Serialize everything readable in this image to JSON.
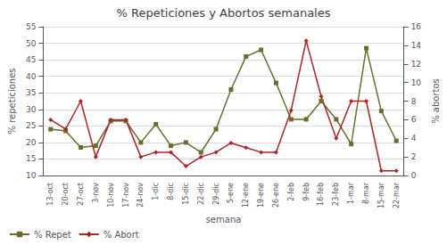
{
  "chart_data": {
    "type": "line",
    "title": "% Repeticiones y Abortos semanales",
    "xlabel": "semana",
    "ylabel": "% repeticiones",
    "y2label": "% abortos",
    "categories": [
      "13-oct",
      "20-oct",
      "27-oct",
      "3-nov",
      "10-nov",
      "17-nov",
      "24-nov",
      "1-dic",
      "8-dic",
      "15-dic",
      "22-dic",
      "29-dic",
      "5-ene",
      "12-ene",
      "19-ene",
      "26-ene",
      "2-feb",
      "9-feb",
      "16-feb",
      "23-feb",
      "1-mar",
      "8-mar",
      "15-mar",
      "22-mar"
    ],
    "series": [
      {
        "name": "% Repet",
        "color": "#6b6b2a",
        "marker": "square",
        "values": [
          24.0,
          23.5,
          18.5,
          19.0,
          26.5,
          26.5,
          20.0,
          25.5,
          19.0,
          20.0,
          17.0,
          24.0,
          36.0,
          46.0,
          48.0,
          38.0,
          27.0,
          27.0,
          32.5,
          27.0,
          19.5,
          48.5,
          29.5,
          20.5
        ]
      },
      {
        "name": "% Abort",
        "color": "#b22222",
        "marker": "diamond",
        "axis": "y2",
        "values": [
          6.0,
          5.0,
          8.0,
          2.0,
          6.0,
          6.0,
          2.0,
          2.5,
          2.5,
          1.0,
          2.0,
          2.5,
          3.5,
          3.0,
          2.5,
          2.5,
          7.0,
          14.5,
          8.5,
          4.0,
          8.0,
          8.0,
          0.5,
          0.5
        ]
      }
    ],
    "ylim": [
      10,
      55
    ],
    "yticks": [
      10,
      15,
      20,
      25,
      30,
      35,
      40,
      45,
      50,
      55
    ],
    "y2lim": [
      0,
      16
    ],
    "y2ticks": [
      0,
      2,
      4,
      6,
      8,
      10,
      12,
      14,
      16
    ],
    "grid": true,
    "legend": "lower left"
  }
}
